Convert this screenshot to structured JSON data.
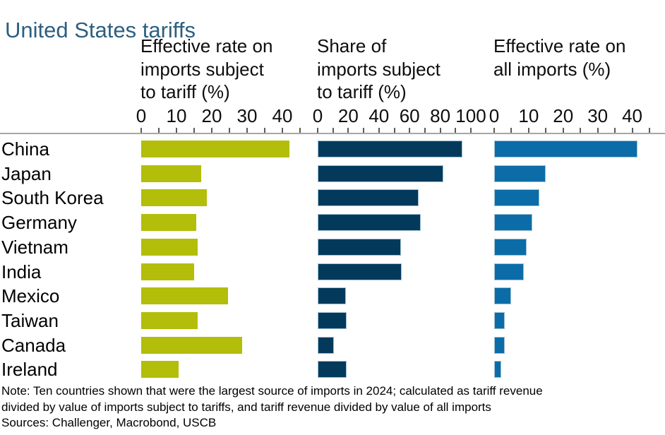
{
  "title": "United States tariffs",
  "colors": {
    "title": "#2c5f80",
    "panel1_bar": "#b2be0a",
    "panel2_bar": "#033a5c",
    "panel3_bar": "#0c6ca8",
    "axis_line": "#a6a6a6"
  },
  "note_lines": [
    "Note: Ten countries shown that were the largest source of imports in 2024; calculated as tariff revenue",
    "divided by value of imports subject to tariffs, and tariff revenue divided by value of all imports"
  ],
  "sources": "Sources: Challenger, Macrobond, USCB",
  "chart_data": [
    {
      "type": "bar",
      "title": "Effective rate on imports subject to tariff (%)",
      "header_lines": [
        "Effective rate on",
        "imports subject",
        "to tariff (%)"
      ],
      "categories": [
        "China",
        "Japan",
        "South Korea",
        "Germany",
        "Vietnam",
        "India",
        "Mexico",
        "Taiwan",
        "Canada",
        "Ireland"
      ],
      "values": [
        42,
        17,
        18.5,
        15.5,
        16,
        15,
        24.5,
        16,
        28.5,
        10.5
      ],
      "xlim": [
        0,
        45
      ],
      "tick_step": 5,
      "tick_labels": [
        "0",
        "10",
        "20",
        "30",
        "40"
      ],
      "color": "#b2be0a",
      "grid": false,
      "orientation": "horizontal"
    },
    {
      "type": "bar",
      "title": "Share of imports subject to tariff (%)",
      "header_lines": [
        "Share of",
        "imports subject",
        "to tariff (%)"
      ],
      "categories": [
        "China",
        "Japan",
        "South Korea",
        "Germany",
        "Vietnam",
        "India",
        "Mexico",
        "Taiwan",
        "Canada",
        "Ireland"
      ],
      "values": [
        94.5,
        82,
        66,
        67.5,
        54.5,
        55,
        18.5,
        19,
        10.5,
        19
      ],
      "xlim": [
        0,
        100
      ],
      "tick_step": 10,
      "tick_labels": [
        "0",
        "20",
        "40",
        "60",
        "80",
        "100"
      ],
      "color": "#033a5c",
      "grid": false,
      "orientation": "horizontal"
    },
    {
      "type": "bar",
      "title": "Effective rate on all imports (%)",
      "header_lines": [
        "Effective rate on",
        "all imports (%)"
      ],
      "categories": [
        "China",
        "Japan",
        "South Korea",
        "Germany",
        "Vietnam",
        "India",
        "Mexico",
        "Taiwan",
        "Canada",
        "Ireland"
      ],
      "values": [
        41.5,
        15,
        13,
        11,
        9.5,
        8.5,
        5,
        3,
        3,
        2
      ],
      "xlim": [
        0,
        45
      ],
      "tick_step": 5,
      "tick_labels": [
        "0",
        "10",
        "20",
        "30",
        "40"
      ],
      "color": "#0c6ca8",
      "grid": false,
      "orientation": "horizontal"
    }
  ]
}
